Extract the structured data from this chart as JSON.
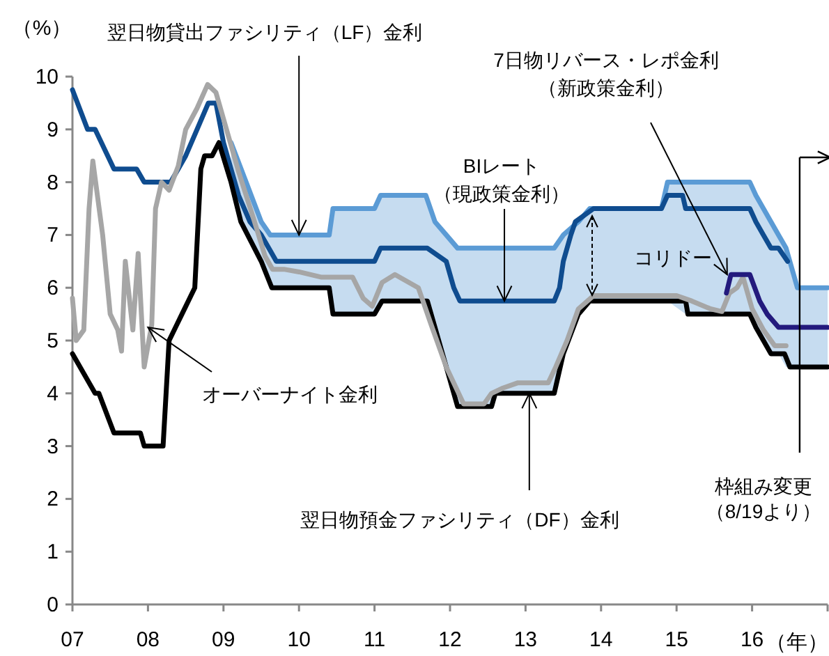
{
  "chart_data": {
    "type": "line",
    "ylabel": "（%）",
    "xlabel": "（年）",
    "xlim": [
      2007,
      2017
    ],
    "ylim": [
      0,
      10
    ],
    "xticks": [
      {
        "value": 2007,
        "label": "07"
      },
      {
        "value": 2008,
        "label": "08"
      },
      {
        "value": 2009,
        "label": "09"
      },
      {
        "value": 2010,
        "label": "10"
      },
      {
        "value": 2011,
        "label": "11"
      },
      {
        "value": 2012,
        "label": "12"
      },
      {
        "value": 2013,
        "label": "13"
      },
      {
        "value": 2014,
        "label": "14"
      },
      {
        "value": 2015,
        "label": "15"
      },
      {
        "value": 2016,
        "label": "16"
      },
      {
        "value": 2017,
        "label": null
      }
    ],
    "yticks": [
      0,
      1,
      2,
      3,
      4,
      5,
      6,
      7,
      8,
      9,
      10
    ],
    "grid": false,
    "marker": "none",
    "line_style": "solid",
    "series": [
      {
        "color": "#5b9bd5",
        "x": [
          2009.1,
          2009.3,
          2009.5,
          2009.62,
          2010.4,
          2010.45,
          2011.0,
          2011.08,
          2011.68,
          2011.8,
          2011.95,
          2012.1,
          2012.55,
          2012.6,
          2013.38,
          2013.5,
          2013.7,
          2013.85,
          2014.8,
          2014.88,
          2015.12,
          2015.97,
          2016.05,
          2016.15,
          2016.25,
          2016.35,
          2016.45,
          2016.6,
          2017.0
        ],
        "values": [
          8.75,
          8.0,
          7.25,
          7.0,
          7.0,
          7.5,
          7.5,
          7.75,
          7.75,
          7.25,
          7.0,
          6.75,
          6.75,
          6.75,
          6.75,
          7.0,
          7.25,
          7.5,
          7.5,
          8.0,
          8.0,
          8.0,
          7.75,
          7.5,
          7.25,
          7.0,
          6.75,
          6.0,
          6.0
        ],
        "lower": [
          8.0,
          7.0,
          6.5,
          6.0,
          6.0,
          5.5,
          5.5,
          5.75,
          5.75,
          5.25,
          4.5,
          3.75,
          3.75,
          4.0,
          4.0,
          4.75,
          5.5,
          5.75,
          5.75,
          5.75,
          5.5,
          5.5,
          5.25,
          5.0,
          4.75,
          4.75,
          4.5,
          4.5,
          4.5
        ],
        "upper": [
          8.75,
          8.0,
          7.25,
          7.0,
          7.0,
          7.5,
          7.5,
          7.75,
          7.75,
          7.25,
          7.0,
          6.75,
          6.75,
          6.75,
          6.75,
          7.0,
          7.25,
          7.5,
          7.5,
          8.0,
          8.0,
          8.0,
          7.75,
          7.5,
          7.25,
          7.0,
          6.75,
          6.0,
          6.0
        ]
      },
      {
        "color": "#0f4c8f",
        "x": [
          2007.0,
          2007.2,
          2007.3,
          2007.55,
          2007.85,
          2007.95,
          2008.3,
          2008.4,
          2008.5,
          2008.65,
          2008.8,
          2008.9,
          2009.0,
          2009.1,
          2009.2,
          2009.35,
          2009.5,
          2009.6,
          2009.7,
          2011.0,
          2011.08,
          2011.7,
          2011.95,
          2012.05,
          2012.13,
          2013.38,
          2013.45,
          2013.5,
          2013.6,
          2013.66,
          2013.9,
          2014.8,
          2014.88,
          2015.08,
          2015.12,
          2015.97,
          2016.05,
          2016.15,
          2016.25,
          2016.35,
          2016.47
        ],
        "values": [
          9.75,
          9.0,
          9.0,
          8.25,
          8.25,
          8.0,
          8.0,
          8.25,
          8.5,
          9.0,
          9.5,
          9.5,
          8.75,
          8.25,
          7.75,
          7.25,
          7.0,
          6.75,
          6.5,
          6.5,
          6.75,
          6.75,
          6.5,
          6.0,
          5.75,
          5.75,
          6.0,
          6.5,
          7.0,
          7.25,
          7.5,
          7.5,
          7.75,
          7.75,
          7.5,
          7.5,
          7.25,
          7.0,
          6.75,
          6.75,
          6.5
        ]
      },
      {
        "color": "#000000",
        "x": [
          2007.0,
          2007.3,
          2007.35,
          2007.55,
          2007.9,
          2007.95,
          2008.2,
          2008.28,
          2008.45,
          2008.62,
          2008.7,
          2008.75,
          2008.85,
          2008.94,
          2009.1,
          2009.23,
          2009.5,
          2009.64,
          2010.4,
          2010.45,
          2011.0,
          2011.1,
          2011.7,
          2011.8,
          2011.95,
          2012.1,
          2012.55,
          2012.6,
          2013.38,
          2013.5,
          2013.7,
          2013.85,
          2015.12,
          2015.15,
          2015.97,
          2016.05,
          2016.15,
          2016.25,
          2016.43,
          2016.5,
          2017.0
        ],
        "values": [
          4.75,
          4.0,
          4.0,
          3.25,
          3.25,
          3.0,
          3.0,
          5.0,
          5.5,
          6.0,
          8.25,
          8.5,
          8.5,
          8.75,
          8.0,
          7.25,
          6.5,
          6.0,
          6.0,
          5.5,
          5.5,
          5.75,
          5.75,
          5.25,
          4.5,
          3.75,
          3.75,
          4.0,
          4.0,
          4.75,
          5.5,
          5.75,
          5.75,
          5.5,
          5.5,
          5.25,
          5.0,
          4.75,
          4.75,
          4.5,
          4.5
        ]
      },
      {
        "color": "#a6a6a6",
        "x": [
          2007.0,
          2007.05,
          2007.15,
          2007.22,
          2007.27,
          2007.4,
          2007.5,
          2007.6,
          2007.65,
          2007.7,
          2007.8,
          2007.87,
          2007.95,
          2008.05,
          2008.1,
          2008.18,
          2008.28,
          2008.4,
          2008.5,
          2008.65,
          2008.79,
          2008.9,
          2009.0,
          2009.2,
          2009.4,
          2009.55,
          2009.65,
          2009.8,
          2010.0,
          2010.3,
          2010.71,
          2010.85,
          2010.97,
          2011.1,
          2011.27,
          2011.58,
          2011.75,
          2011.95,
          2012.18,
          2012.45,
          2012.55,
          2012.7,
          2012.9,
          2013.3,
          2013.4,
          2013.55,
          2013.7,
          2013.9,
          2014.3,
          2014.7,
          2015.0,
          2015.2,
          2015.45,
          2015.6,
          2015.7,
          2015.8,
          2015.88,
          2016.0,
          2016.15,
          2016.3,
          2016.45
        ],
        "values": [
          5.8,
          5.0,
          5.2,
          7.5,
          8.4,
          7.0,
          5.5,
          5.2,
          4.8,
          6.5,
          5.2,
          6.65,
          4.5,
          5.3,
          7.5,
          8.0,
          7.85,
          8.3,
          9.0,
          9.4,
          9.85,
          9.7,
          9.2,
          8.2,
          7.3,
          6.6,
          6.35,
          6.35,
          6.3,
          6.2,
          6.2,
          5.8,
          5.65,
          6.1,
          6.25,
          6.0,
          5.3,
          4.5,
          3.8,
          3.8,
          4.0,
          4.1,
          4.2,
          4.2,
          4.5,
          5.0,
          5.6,
          5.85,
          5.85,
          5.85,
          5.85,
          5.75,
          5.6,
          5.55,
          5.9,
          6.0,
          6.2,
          5.6,
          5.2,
          4.9,
          4.9
        ]
      },
      {
        "color": "#231a7d",
        "x": [
          2015.66,
          2015.72,
          2015.97,
          2016.1,
          2016.2,
          2016.35,
          2017.0
        ],
        "values": [
          5.9,
          6.25,
          6.25,
          5.75,
          5.5,
          5.25,
          5.25
        ]
      }
    ],
    "annotations": [
      {
        "text": "翌日物貸出ファシリティ（LF）金利",
        "x": 2010.0,
        "y": 7.0
      },
      {
        "text": "BIレート（現政策金利）",
        "x": 2012.72,
        "y": 5.75
      },
      {
        "text": "翌日物預金ファシリティ（DF）金利",
        "x": 2013.05,
        "y": 4.0
      },
      {
        "text": "オーバーナイト金利",
        "x": 2008.0,
        "y": 5.25
      },
      {
        "text": "7日物リバース・レポ金利（新政策金利）",
        "x": 2015.67,
        "y": 6.25
      },
      "コリドー"
    ],
    "ref_lines": [
      {
        "axis": "x",
        "value": 2016.63,
        "label": "枠組み変更（8/19より）",
        "color": "#000000"
      }
    ]
  }
}
